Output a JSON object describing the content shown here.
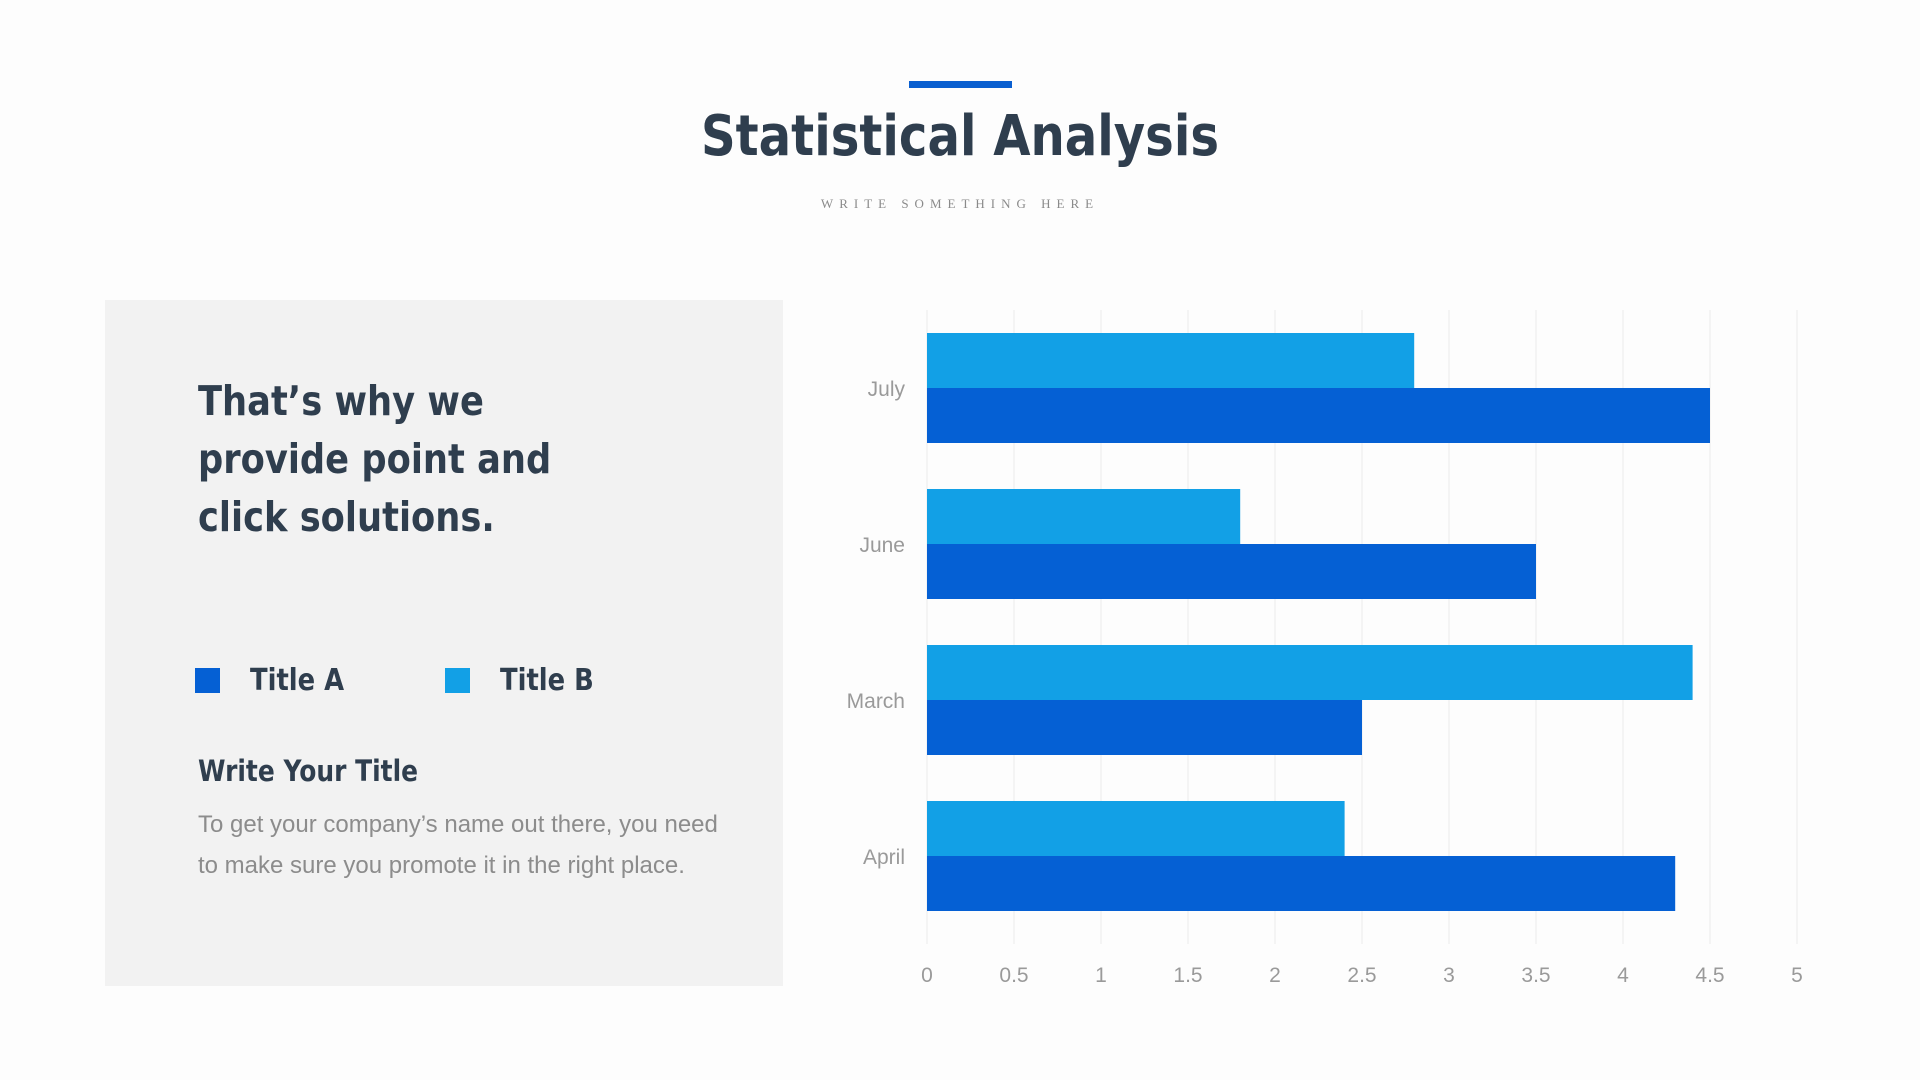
{
  "header": {
    "title": "Statistical Analysis",
    "subtitle": "WRITE SOMETHING HERE"
  },
  "panel": {
    "heading": "That’s why we provide point and click solutions.",
    "body_title": "Write Your Title",
    "body_text": "To get your company’s name out there, you need to make sure you promote it in the right place."
  },
  "colors": {
    "accent": "#0a5fd0",
    "series_a": "#0560d4",
    "series_b": "#12a0e6"
  },
  "chart_data": {
    "type": "bar",
    "orientation": "horizontal",
    "categories": [
      "April",
      "March",
      "June",
      "July"
    ],
    "series": [
      {
        "name": "Title A",
        "values": [
          4.3,
          2.5,
          3.5,
          4.5
        ]
      },
      {
        "name": "Title B",
        "values": [
          2.4,
          4.4,
          1.8,
          2.8
        ]
      }
    ],
    "xlim": [
      0,
      5
    ],
    "xticks": [
      "0",
      "0.5",
      "1",
      "1.5",
      "2",
      "2.5",
      "3",
      "3.5",
      "4",
      "4.5",
      "5"
    ],
    "grid": true,
    "legend": "left-panel"
  }
}
